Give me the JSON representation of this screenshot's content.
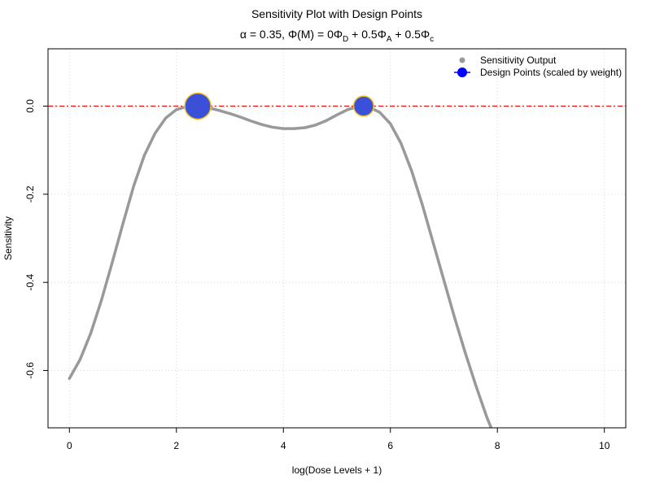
{
  "chart_data": {
    "type": "line",
    "title": "Sensitivity Plot with Design Points",
    "subtitle": {
      "alpha_symbol": "α",
      "alpha_text": " = 0.35, ",
      "phi_symbol": "Φ",
      "m_text": "(M)",
      "eq_text": " = 0",
      "term_d_coef": "",
      "sub_d": "D",
      "plus1": " + 0.5",
      "sub_a": "A",
      "plus2": " + 0.5",
      "sub_c": "c"
    },
    "xlabel": "log(Dose Levels + 1)",
    "ylabel": "Sensitivity",
    "xlim": [
      -0.4,
      10.4
    ],
    "ylim": [
      -0.73,
      0.13
    ],
    "x_ticks": [
      0,
      2,
      4,
      6,
      8,
      10
    ],
    "x_tick_labels": [
      "0",
      "2",
      "4",
      "6",
      "8",
      "10"
    ],
    "y_ticks": [
      0.0,
      -0.2,
      -0.4,
      -0.6
    ],
    "y_tick_labels": [
      "0.0",
      "-0.2",
      "-0.4",
      "-0.6"
    ],
    "grid": true,
    "reference_line": {
      "y": 0,
      "color": "#ff0000",
      "style": "dashdot"
    },
    "series": [
      {
        "name": "Sensitivity Output",
        "color": "#999999",
        "x": [
          0,
          0.2,
          0.4,
          0.6,
          0.8,
          1.0,
          1.2,
          1.4,
          1.6,
          1.8,
          2.0,
          2.2,
          2.4,
          2.6,
          2.8,
          3.0,
          3.2,
          3.4,
          3.6,
          3.8,
          4.0,
          4.2,
          4.4,
          4.6,
          4.8,
          5.0,
          5.2,
          5.4,
          5.5,
          5.6,
          5.8,
          6.0,
          6.2,
          6.4,
          6.6,
          6.8,
          7.0,
          7.2,
          7.4,
          7.6,
          7.8,
          7.9
        ],
        "y": [
          -0.618,
          -0.575,
          -0.515,
          -0.44,
          -0.355,
          -0.267,
          -0.182,
          -0.112,
          -0.062,
          -0.027,
          -0.008,
          -0.001,
          0.0,
          -0.004,
          -0.01,
          -0.017,
          -0.025,
          -0.034,
          -0.042,
          -0.048,
          -0.051,
          -0.051,
          -0.049,
          -0.043,
          -0.033,
          -0.02,
          -0.008,
          -0.001,
          0.0,
          -0.002,
          -0.014,
          -0.04,
          -0.085,
          -0.148,
          -0.225,
          -0.31,
          -0.395,
          -0.48,
          -0.56,
          -0.635,
          -0.705,
          -0.735
        ]
      }
    ],
    "design_points": {
      "name": "Design Points (scaled by weight)",
      "fill": "#3a50d9",
      "stroke": "#f0c020",
      "legend_color": "#0000ff",
      "points": [
        {
          "x": 2.4,
          "y": 0.0,
          "weight": 0.65
        },
        {
          "x": 5.5,
          "y": 0.0,
          "weight": 0.35
        }
      ]
    },
    "legend_position": "top-right"
  }
}
